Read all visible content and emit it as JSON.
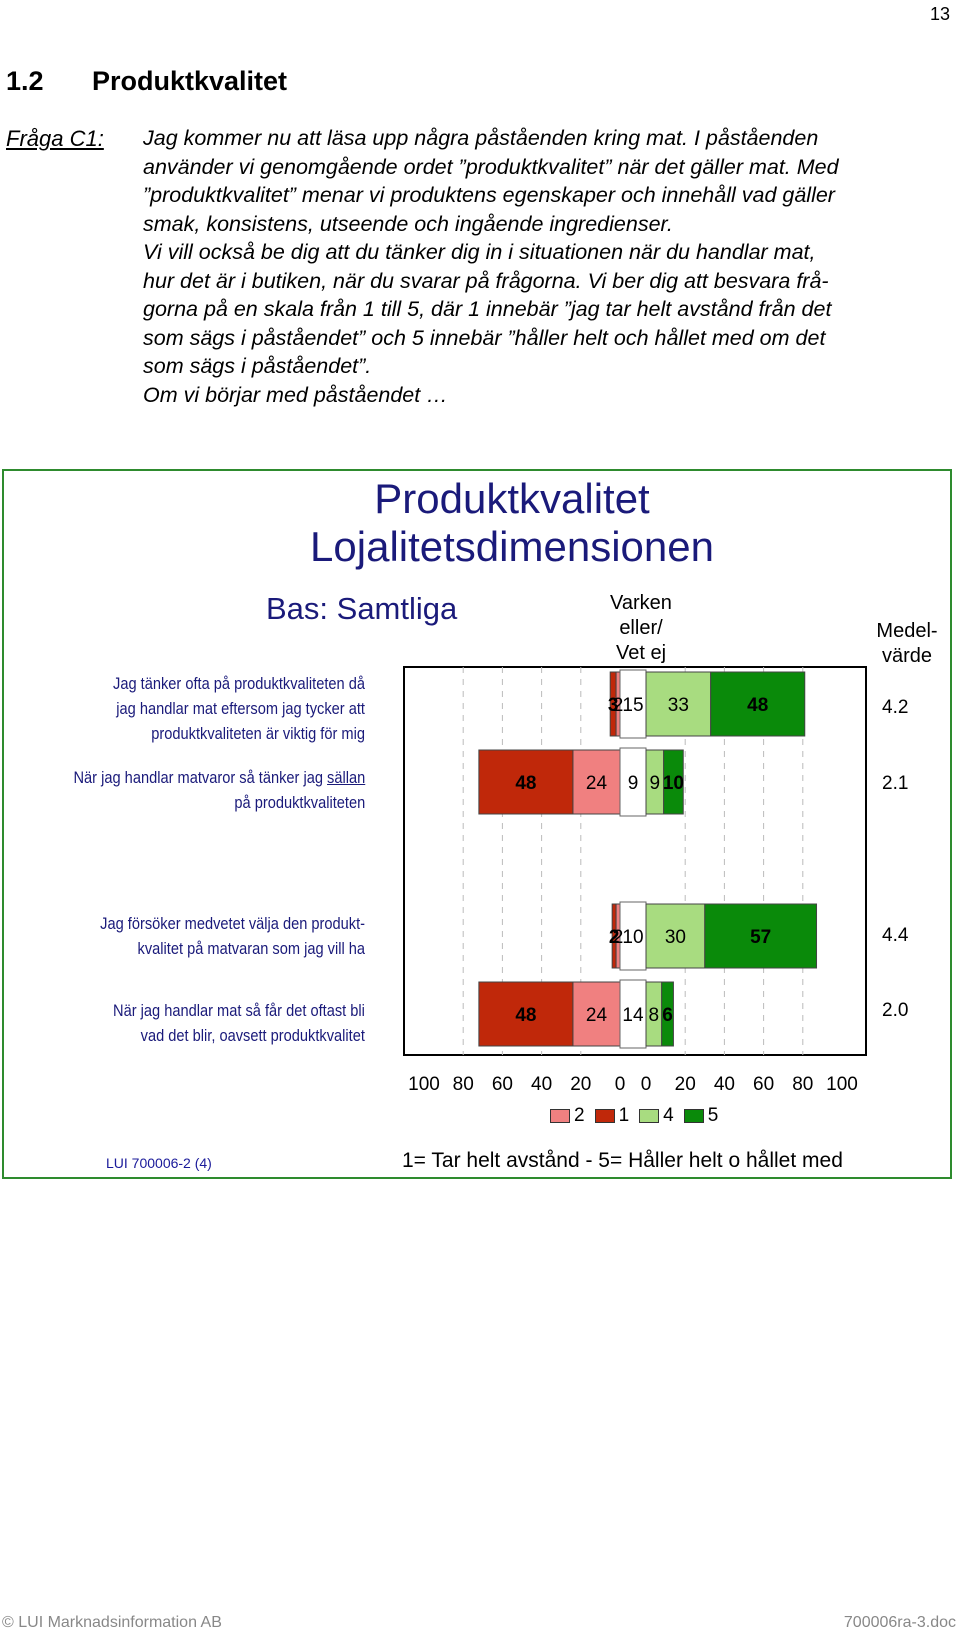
{
  "page_number": "13",
  "section": {
    "number": "1.2",
    "title": "Produktkvalitet"
  },
  "question": {
    "label": "Fråga C1:",
    "lines": [
      "Jag kommer nu att läsa upp några påståenden kring mat. I påståenden",
      "använder vi genomgående ordet ”produktkvalitet” när det gäller mat. Med",
      "”produktkvalitet” menar vi produktens egenskaper och innehåll vad gäller",
      "smak, konsistens, utseende och ingående ingredienser.",
      "Vi vill också be dig att du tänker dig in i situationen när du handlar mat,",
      "hur det är i butiken, när du svarar på frågorna. Vi ber dig att besvara frå-",
      "gorna på en skala från 1 till 5, där 1 innebär ”jag tar helt avstånd från det",
      "som sägs i påståendet” och 5 innebär ”håller helt och hållet med om det",
      "som sägs i påståendet”.",
      "Om vi börjar med påståendet …"
    ]
  },
  "chart_data": {
    "type": "bar",
    "title_line1": "Produktkvalitet",
    "title_line2": "Lojalitetsdimensionen",
    "subtitle": "Bas: Samtliga",
    "neutral_header": [
      "Varken",
      "eller/",
      "Vet ej"
    ],
    "mean_header": [
      "Medel-",
      "värde"
    ],
    "x_ticks": [
      "100",
      "80",
      "60",
      "40",
      "20",
      "0",
      "0",
      "20",
      "40",
      "60",
      "80",
      "100"
    ],
    "legend": [
      {
        "label": "2",
        "color": "#f08080"
      },
      {
        "label": "1",
        "color": "#c0280a"
      },
      {
        "label": "4",
        "color": "#a8dc80"
      },
      {
        "label": "5",
        "color": "#0a8a0a"
      }
    ],
    "scale_note": "1= Tar helt avstånd - 5= Håller helt o hållet med",
    "colors": {
      "v1": "#c0280a",
      "v2": "#f08080",
      "v4": "#a8dc80",
      "v5": "#0a8a0a",
      "neutral": "#ffffff"
    },
    "rows": [
      {
        "label_lines": [
          "Jag tänker ofta på produktkvaliteten då",
          "jag handlar mat eftersom jag tycker att",
          "produktkvaliteten är viktig för mig"
        ],
        "v1": 3,
        "v2": 2,
        "neutral": 15,
        "v4": 33,
        "v5": 48,
        "mean": "4.2"
      },
      {
        "label_lines": [
          "När jag handlar matvaror så tänker jag |sällan",
          "på produktkvaliteten"
        ],
        "v1": 48,
        "v2": 24,
        "neutral": 9,
        "v4": 9,
        "v5": 10,
        "mean": "2.1"
      },
      {
        "label_lines": [
          "Jag försöker medvetet välja den produkt-",
          "kvalitet på matvaran som jag vill ha"
        ],
        "v1": 2,
        "v2": 2,
        "neutral": 10,
        "v4": 30,
        "v5": 57,
        "mean": "4.4"
      },
      {
        "label_lines": [
          "När jag handlar mat så får det oftast bli",
          "vad det blir, oavsett produktkvalitet"
        ],
        "v1": 48,
        "v2": 24,
        "neutral": 14,
        "v4": 8,
        "v5": 6,
        "mean": "2.0"
      }
    ],
    "report_code": "LUI 700006-2 (4)"
  },
  "footer": {
    "left": "© LUI Marknadsinformation AB",
    "right": "700006ra-3.doc"
  }
}
